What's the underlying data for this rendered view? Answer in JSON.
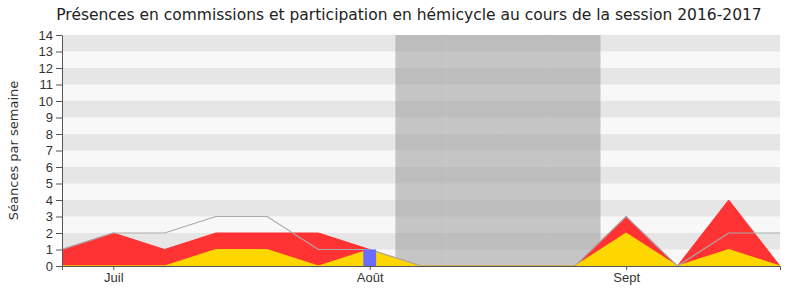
{
  "chart_data": {
    "type": "area",
    "title": "Présences en commissions et participation en hémicycle au cours de la session 2016-2017",
    "y_label": "Séances par semaine",
    "categories": [
      null,
      "Juil",
      null,
      null,
      null,
      null,
      "Août",
      null,
      null,
      null,
      null,
      "Sept",
      null,
      null,
      null
    ],
    "series": [
      {
        "type": "band",
        "color": "#9a9a9a",
        "values": [
          0,
          0,
          0,
          0,
          0,
          0,
          0,
          14,
          14,
          14,
          14,
          0,
          0,
          0,
          0
        ]
      },
      {
        "type": "area",
        "color": "#ff3333",
        "values": [
          1,
          2,
          1,
          2,
          2,
          2,
          1,
          0,
          0,
          0,
          0,
          3,
          0,
          4,
          0
        ]
      },
      {
        "type": "area",
        "color": "#ffd700",
        "values": [
          0,
          0,
          0,
          1,
          1,
          0,
          1,
          0,
          0,
          0,
          0,
          2,
          0,
          1,
          0
        ]
      },
      {
        "type": "line",
        "color": "#aaaaaa",
        "values": [
          1,
          2,
          2,
          3,
          3,
          1,
          1,
          0,
          0,
          0,
          0,
          3,
          0,
          2,
          2
        ]
      },
      {
        "type": "bar",
        "color": "#6b6bff",
        "values": [
          0,
          0,
          0,
          0,
          0,
          0,
          1,
          0,
          0,
          0,
          0,
          0,
          0,
          0,
          0
        ]
      }
    ],
    "ylim": [
      0,
      14
    ],
    "yticks": [
      0,
      1,
      2,
      3,
      4,
      5,
      6,
      7,
      8,
      9,
      10,
      11,
      12,
      13,
      14
    ],
    "grid": true
  }
}
